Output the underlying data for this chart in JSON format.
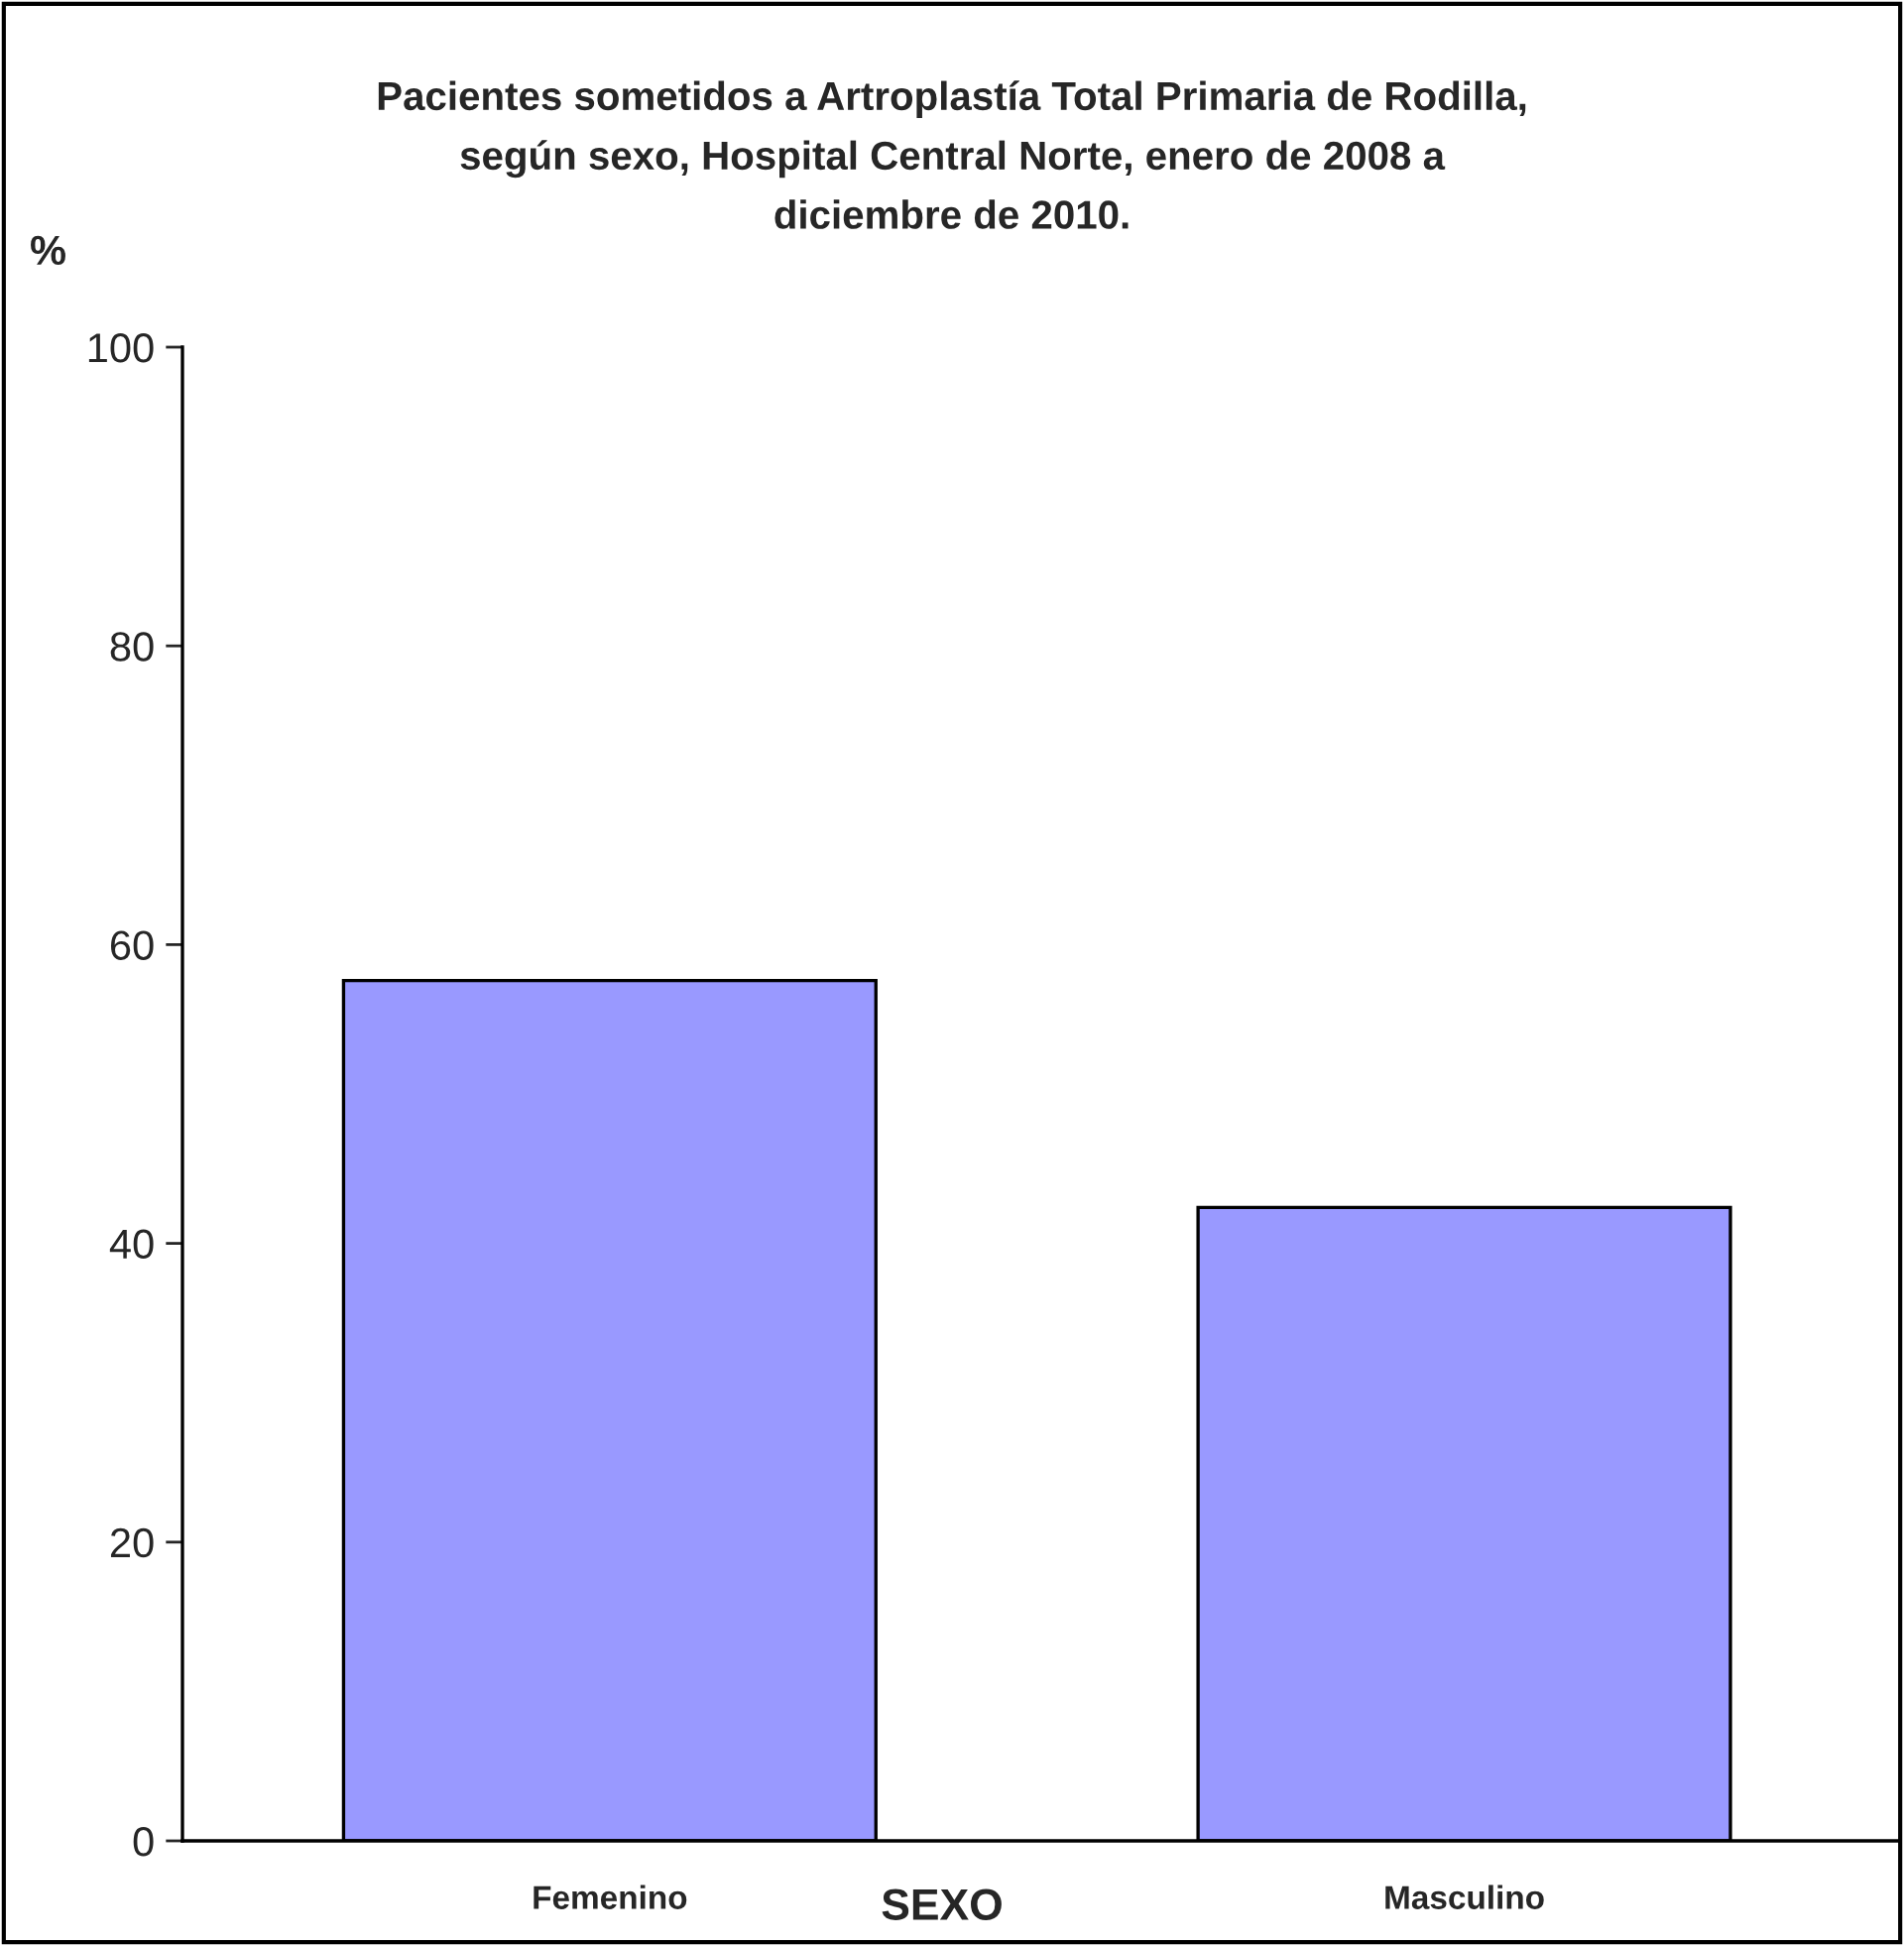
{
  "chart_data": {
    "type": "bar",
    "title": "Pacientes sometidos a Artroplastía Total Primaria de Rodilla,\nsegún sexo, Hospital Central Norte, enero de 2008 a\ndiciembre de 2010.",
    "xlabel": "SEXO",
    "ylabel": "%",
    "categories": [
      "Femenino",
      "Masculino"
    ],
    "values": [
      57.6,
      42.4
    ],
    "color": "#9999ff",
    "ylim": [
      0,
      100
    ],
    "yticks": [
      0,
      20,
      40,
      60,
      80,
      100
    ],
    "grid": false,
    "legend": false
  }
}
